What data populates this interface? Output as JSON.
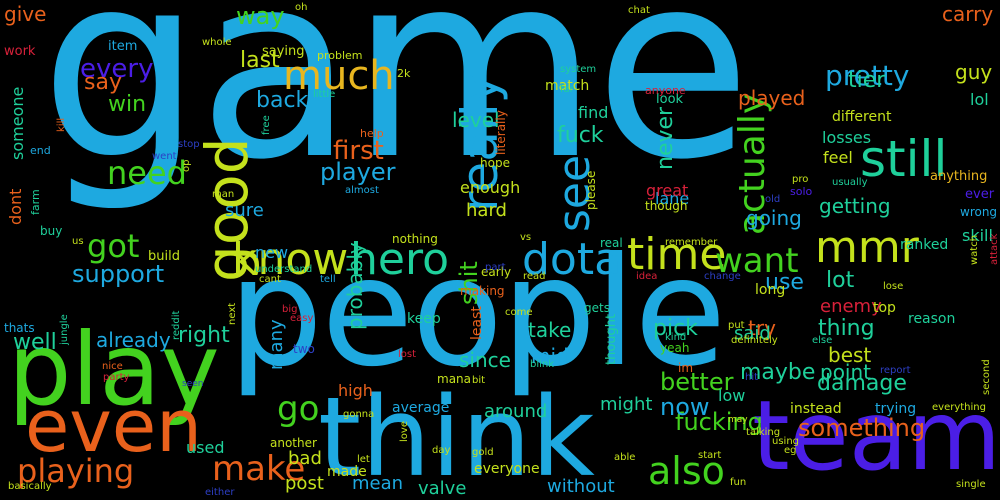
{
  "palette": {
    "blue": "#1ea9e0",
    "purple": "#4b1ee6",
    "green": "#43d21f",
    "lime": "#c4e11c",
    "orange": "#e9611c",
    "teal": "#1fd09b",
    "red": "#d8213a",
    "navy": "#2d3fc5",
    "yellow": "#e8b61f"
  },
  "words": [
    {
      "text": "game",
      "color": "#1ea9e0"
    },
    {
      "text": "people",
      "color": "#1ea9e0"
    },
    {
      "text": "play",
      "color": "#43d21f"
    },
    {
      "text": "even",
      "color": "#e9611c"
    },
    {
      "text": "think",
      "color": "#1ea9e0"
    },
    {
      "text": "team",
      "color": "#4b1ee6"
    },
    {
      "text": "good",
      "color": "#c4e11c"
    },
    {
      "text": "much",
      "color": "#e8b61f"
    },
    {
      "text": "really",
      "color": "#1ea9e0"
    },
    {
      "text": "still",
      "color": "#1fd09b"
    },
    {
      "text": "know",
      "color": "#c4e11c"
    },
    {
      "text": "hero",
      "color": "#1fd09b"
    },
    {
      "text": "dota",
      "color": "#1ea9e0"
    },
    {
      "text": "time",
      "color": "#c4e11c"
    },
    {
      "text": "mmr",
      "color": "#c4e11c"
    },
    {
      "text": "want",
      "color": "#43d21f"
    },
    {
      "text": "see",
      "color": "#1ea9e0"
    },
    {
      "text": "need",
      "color": "#43d21f"
    },
    {
      "text": "got",
      "color": "#43d21f"
    },
    {
      "text": "make",
      "color": "#e9611c"
    },
    {
      "text": "also",
      "color": "#43d21f"
    },
    {
      "text": "playing",
      "color": "#e9611c"
    },
    {
      "text": "actually",
      "color": "#43d21f"
    },
    {
      "text": "every",
      "color": "#4b1ee6"
    },
    {
      "text": "pretty",
      "color": "#1ea9e0"
    },
    {
      "text": "way",
      "color": "#43d21f"
    },
    {
      "text": "first",
      "color": "#e9611c"
    },
    {
      "text": "player",
      "color": "#1ea9e0"
    },
    {
      "text": "go",
      "color": "#43d21f"
    },
    {
      "text": "support",
      "color": "#1ea9e0"
    },
    {
      "text": "fucking",
      "color": "#43d21f"
    },
    {
      "text": "something",
      "color": "#e9611c"
    },
    {
      "text": "better",
      "color": "#43d21f"
    },
    {
      "text": "now",
      "color": "#1ea9e0"
    },
    {
      "text": "back",
      "color": "#1ea9e0"
    },
    {
      "text": "last",
      "color": "#c4e11c"
    },
    {
      "text": "say",
      "color": "#e9611c"
    },
    {
      "text": "win",
      "color": "#43d21f"
    },
    {
      "text": "shit",
      "color": "#43d21f"
    },
    {
      "text": "fuck",
      "color": "#1fd09b"
    },
    {
      "text": "never",
      "color": "#1fd09b"
    },
    {
      "text": "level",
      "color": "#1fd09b"
    },
    {
      "text": "tier",
      "color": "#1fd09b"
    },
    {
      "text": "played",
      "color": "#e9611c"
    },
    {
      "text": "carry",
      "color": "#e9611c"
    },
    {
      "text": "guy",
      "color": "#c4e11c"
    },
    {
      "text": "give",
      "color": "#e9611c"
    },
    {
      "text": "well",
      "color": "#1fd09b"
    },
    {
      "text": "right",
      "color": "#1fd09b"
    },
    {
      "text": "already",
      "color": "#1ea9e0"
    },
    {
      "text": "pick",
      "color": "#1fd09b"
    },
    {
      "text": "maybe",
      "color": "#1fd09b"
    },
    {
      "text": "damage",
      "color": "#1fd09b"
    },
    {
      "text": "thing",
      "color": "#1fd09b"
    },
    {
      "text": "best",
      "color": "#c4e11c"
    },
    {
      "text": "point",
      "color": "#1fd09b"
    },
    {
      "text": "lot",
      "color": "#1fd09b"
    },
    {
      "text": "use",
      "color": "#1ea9e0"
    },
    {
      "text": "try",
      "color": "#e9611c"
    },
    {
      "text": "said",
      "color": "#1fd09b"
    },
    {
      "text": "enemy",
      "color": "#d8213a"
    },
    {
      "text": "going",
      "color": "#1ea9e0"
    },
    {
      "text": "getting",
      "color": "#1fd09b"
    },
    {
      "text": "sure",
      "color": "#1ea9e0"
    },
    {
      "text": "hard",
      "color": "#c4e11c"
    },
    {
      "text": "enough",
      "color": "#c4e11c"
    },
    {
      "text": "take",
      "color": "#1fd09b"
    },
    {
      "text": "since",
      "color": "#1fd09b"
    },
    {
      "text": "mid",
      "color": "#1ea9e0"
    },
    {
      "text": "around",
      "color": "#1fd09b"
    },
    {
      "text": "might",
      "color": "#1fd09b"
    },
    {
      "text": "probably",
      "color": "#1fd09b"
    },
    {
      "text": "many",
      "color": "#1ea9e0"
    },
    {
      "text": "post",
      "color": "#c4e11c"
    },
    {
      "text": "mean",
      "color": "#1ea9e0"
    },
    {
      "text": "valve",
      "color": "#1fd09b"
    },
    {
      "text": "without",
      "color": "#1ea9e0"
    },
    {
      "text": "bad",
      "color": "#c4e11c"
    },
    {
      "text": "used",
      "color": "#1fd09b"
    },
    {
      "text": "new",
      "color": "#1ea9e0"
    },
    {
      "text": "someone",
      "color": "#1fd09b"
    },
    {
      "text": "dont",
      "color": "#e9611c"
    },
    {
      "text": "low",
      "color": "#1fd09b"
    },
    {
      "text": "lol",
      "color": "#1fd09b"
    },
    {
      "text": "losses",
      "color": "#1fd09b"
    },
    {
      "text": "feel",
      "color": "#c4e11c"
    },
    {
      "text": "skill",
      "color": "#1fd09b"
    },
    {
      "text": "ranked",
      "color": "#1fd09b"
    },
    {
      "text": "long",
      "color": "#c4e11c"
    },
    {
      "text": "top",
      "color": "#c4e11c"
    },
    {
      "text": "lane",
      "color": "#1ea9e0"
    },
    {
      "text": "great",
      "color": "#d8213a"
    },
    {
      "text": "average",
      "color": "#1ea9e0"
    },
    {
      "text": "high",
      "color": "#e9611c"
    },
    {
      "text": "reason",
      "color": "#1fd09b"
    },
    {
      "text": "trying",
      "color": "#1ea9e0"
    },
    {
      "text": "instead",
      "color": "#c4e11c"
    },
    {
      "text": "everyone",
      "color": "#c4e11c"
    },
    {
      "text": "made",
      "color": "#c4e11c"
    },
    {
      "text": "keep",
      "color": "#1fd09b"
    },
    {
      "text": "least",
      "color": "#e9611c"
    },
    {
      "text": "find",
      "color": "#1fd09b"
    },
    {
      "text": "match",
      "color": "#c4e11c"
    },
    {
      "text": "different",
      "color": "#c4e11c"
    },
    {
      "text": "anything",
      "color": "#e8b61f"
    },
    {
      "text": "ever",
      "color": "#4b1ee6"
    },
    {
      "text": "wrong",
      "color": "#1ea9e0"
    },
    {
      "text": "item",
      "color": "#1ea9e0"
    },
    {
      "text": "work",
      "color": "#d8213a"
    },
    {
      "text": "saying",
      "color": "#c4e11c"
    },
    {
      "text": "look",
      "color": "#1fd09b"
    },
    {
      "text": "build",
      "color": "#c4e11c"
    },
    {
      "text": "buy",
      "color": "#1fd09b"
    },
    {
      "text": "two",
      "color": "#2d3fc5"
    },
    {
      "text": "yeah",
      "color": "#43d21f"
    },
    {
      "text": "im",
      "color": "#e9611c"
    },
    {
      "text": "thats",
      "color": "#1ea9e0"
    },
    {
      "text": "nothing",
      "color": "#c4e11c"
    },
    {
      "text": "another",
      "color": "#c4e11c"
    },
    {
      "text": "early",
      "color": "#c4e11c"
    },
    {
      "text": "gets",
      "color": "#1fd09b"
    },
    {
      "text": "making",
      "color": "#e9611c"
    },
    {
      "text": "mana",
      "color": "#c4e11c"
    },
    {
      "text": "understand",
      "color": "#1fd09b"
    },
    {
      "text": "real",
      "color": "#1fd09b"
    },
    {
      "text": "remember",
      "color": "#c4e11c"
    },
    {
      "text": "though",
      "color": "#c4e11c"
    },
    {
      "text": "please",
      "color": "#c4e11c"
    },
    {
      "text": "hope",
      "color": "#c4e11c"
    },
    {
      "text": "literally",
      "color": "#e9611c"
    },
    {
      "text": "little",
      "color": "#1fd09b"
    },
    {
      "text": "system",
      "color": "#1fd09b"
    },
    {
      "text": "problem",
      "color": "#c4e11c"
    },
    {
      "text": "anyone",
      "color": "#d8213a"
    },
    {
      "text": "far",
      "color": "#1fd09b"
    },
    {
      "text": "chat",
      "color": "#c4e11c"
    },
    {
      "text": "oh",
      "color": "#c4e11c"
    },
    {
      "text": "whole",
      "color": "#c4e11c"
    },
    {
      "text": "2k",
      "color": "#c4e11c"
    },
    {
      "text": "solo",
      "color": "#4b1ee6"
    },
    {
      "text": "help",
      "color": "#e9611c"
    },
    {
      "text": "almost",
      "color": "#1ea9e0"
    },
    {
      "text": "went",
      "color": "#2d3fc5"
    },
    {
      "text": "stop",
      "color": "#2d3fc5"
    },
    {
      "text": "man",
      "color": "#c4e11c"
    },
    {
      "text": "free",
      "color": "#1fd09b"
    },
    {
      "text": "end",
      "color": "#1ea9e0"
    },
    {
      "text": "kill",
      "color": "#e9611c"
    },
    {
      "text": "farm",
      "color": "#1fd09b"
    },
    {
      "text": "us",
      "color": "#c4e11c"
    },
    {
      "text": "cant",
      "color": "#c4e11c"
    },
    {
      "text": "tell",
      "color": "#1ea9e0"
    },
    {
      "text": "part",
      "color": "#2d3fc5"
    },
    {
      "text": "vs",
      "color": "#c4e11c"
    },
    {
      "text": "read",
      "color": "#c4e11c"
    },
    {
      "text": "idea",
      "color": "#d8213a"
    },
    {
      "text": "change",
      "color": "#2d3fc5"
    },
    {
      "text": "next",
      "color": "#c4e11c"
    },
    {
      "text": "big",
      "color": "#d8213a"
    },
    {
      "text": "easy",
      "color": "#d8213a"
    },
    {
      "text": "come",
      "color": "#c4e11c"
    },
    {
      "text": "kind",
      "color": "#1fd09b"
    },
    {
      "text": "put",
      "color": "#c4e11c"
    },
    {
      "text": "definitely",
      "color": "#c4e11c"
    },
    {
      "text": "else",
      "color": "#1fd09b"
    },
    {
      "text": "hit",
      "color": "#2d3fc5"
    },
    {
      "text": "report",
      "color": "#2d3fc5"
    },
    {
      "text": "attack",
      "color": "#d8213a"
    },
    {
      "text": "watch",
      "color": "#c4e11c"
    },
    {
      "text": "nice",
      "color": "#e9611c"
    },
    {
      "text": "party",
      "color": "#d8213a"
    },
    {
      "text": "jungle",
      "color": "#1fd09b"
    },
    {
      "text": "reddit",
      "color": "#1fd09b"
    },
    {
      "text": "seen",
      "color": "#2d3fc5"
    },
    {
      "text": "lost",
      "color": "#d8213a"
    },
    {
      "text": "blink",
      "color": "#1fd09b"
    },
    {
      "text": "thought",
      "color": "#1fd09b"
    },
    {
      "text": "bit",
      "color": "#c4e11c"
    },
    {
      "text": "gonna",
      "color": "#c4e11c"
    },
    {
      "text": "let",
      "color": "#c4e11c"
    },
    {
      "text": "love",
      "color": "#c4e11c"
    },
    {
      "text": "day",
      "color": "#c4e11c"
    },
    {
      "text": "gold",
      "color": "#c4e11c"
    },
    {
      "text": "able",
      "color": "#c4e11c"
    },
    {
      "text": "start",
      "color": "#c4e11c"
    },
    {
      "text": "fun",
      "color": "#c4e11c"
    },
    {
      "text": "talking",
      "color": "#c4e11c"
    },
    {
      "text": "may",
      "color": "#c4e11c"
    },
    {
      "text": "using",
      "color": "#c4e11c"
    },
    {
      "text": "eg",
      "color": "#c4e11c"
    },
    {
      "text": "everything",
      "color": "#c4e11c"
    },
    {
      "text": "second",
      "color": "#c4e11c"
    },
    {
      "text": "single",
      "color": "#c4e11c"
    },
    {
      "text": "lose",
      "color": "#c4e11c"
    },
    {
      "text": "pro",
      "color": "#c4e11c"
    },
    {
      "text": "old",
      "color": "#2d3fc5"
    },
    {
      "text": "usually",
      "color": "#1fd09b"
    },
    {
      "text": "op",
      "color": "#c4e11c"
    },
    {
      "text": "basically",
      "color": "#c4e11c"
    },
    {
      "text": "either",
      "color": "#2d3fc5"
    }
  ]
}
